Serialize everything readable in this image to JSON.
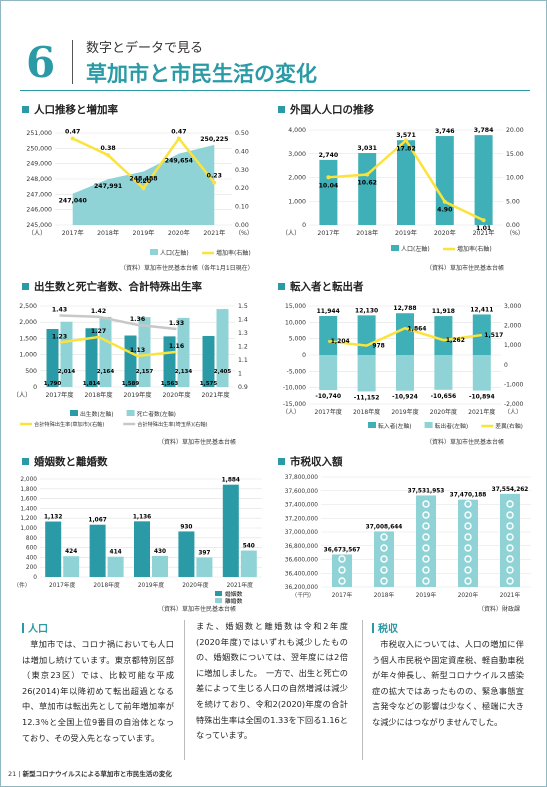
{
  "header": {
    "number": "6",
    "subtitle": "数字とデータで見る",
    "title": "草加市と市民生活の変化"
  },
  "sections": {
    "population": "人口推移と増加率",
    "foreign": "外国人人口の推移",
    "birth": "出生数と死亡者数、合計特殊出生率",
    "migration": "転入者と転出者",
    "marriage": "婚姻数と離婚数",
    "tax": "市税収入額"
  },
  "sources": {
    "population": "（資料）草加市住民基本台帳（各年1月1日現在）",
    "foreign": "（資料）草加市住民基本台帳",
    "birth": "（資料）草加市住民基本台帳",
    "migration": "（資料）草加市住民基本台帳",
    "marriage": "（資料）草加市住民基本台帳",
    "tax": "（資料）財政課"
  },
  "chart_data": [
    {
      "type": "area",
      "id": "population",
      "categories": [
        "2017年",
        "2018年",
        "2019年",
        "2020年",
        "2021年"
      ],
      "series": [
        {
          "name": "人口(左軸)",
          "values": [
            247040,
            247991,
            248488,
            249654,
            250225
          ],
          "labels": [
            "247,040",
            "247,991",
            "248,488",
            "249,654",
            "250,225"
          ]
        },
        {
          "name": "増加率(右軸)",
          "values": [
            0.47,
            0.38,
            0.2,
            0.47,
            0.23
          ],
          "labels": [
            "0.47",
            "0.38",
            "0.20",
            "0.47",
            "0.23"
          ]
        }
      ],
      "ylim": [
        245000,
        251000
      ],
      "yticks": [
        "251,000",
        "250,000",
        "249,000",
        "248,000",
        "247,000",
        "246,000",
        "245,000"
      ],
      "y2lim": [
        0,
        0.5
      ],
      "y2ticks": [
        "0.50",
        "0.40",
        "0.30",
        "0.20",
        "0.10",
        "0.00"
      ],
      "yunit": "（人）",
      "y2unit": "（%）"
    },
    {
      "type": "bar",
      "id": "foreign",
      "categories": [
        "2017年",
        "2018年",
        "2019年",
        "2020年",
        "2021年"
      ],
      "series": [
        {
          "name": "人口(左軸)",
          "values": [
            2740,
            3031,
            3571,
            3746,
            3784
          ],
          "labels": [
            "2,740",
            "3,031",
            "3,571",
            "3,746",
            "3,784"
          ]
        },
        {
          "name": "増加率(右軸)",
          "values": [
            10.04,
            10.62,
            17.82,
            4.9,
            1.01
          ],
          "labels": [
            "10.04",
            "10.62",
            "17.82",
            "4.90",
            "1.01"
          ]
        }
      ],
      "ylim": [
        0,
        4000
      ],
      "yticks": [
        "4,000",
        "3,000",
        "2,000",
        "1,000",
        "0"
      ],
      "y2lim": [
        0,
        20
      ],
      "y2ticks": [
        "20.00",
        "15.00",
        "10.00",
        "5.00",
        "0.00"
      ],
      "yunit": "（人）",
      "y2unit": "（%）"
    },
    {
      "type": "bar",
      "id": "birth",
      "categories": [
        "2017年度",
        "2018年度",
        "2019年度",
        "2020年度",
        "2021年度"
      ],
      "series": [
        {
          "name": "出生数(左軸)",
          "values": [
            1790,
            1814,
            1589,
            1563,
            1575
          ],
          "labels": [
            "1,790",
            "1,814",
            "1,589",
            "1,563",
            "1,575"
          ]
        },
        {
          "name": "死亡者数(左軸)",
          "values": [
            2014,
            2164,
            2157,
            2134,
            2405
          ],
          "labels": [
            "2,014",
            "2,164",
            "2,157",
            "2,134",
            "2,405"
          ]
        },
        {
          "name": "合計特殊出生率(草加市)(右軸)",
          "values": [
            1.23,
            1.27,
            1.13,
            1.16,
            null
          ],
          "labels": [
            "1.23",
            "1.27",
            "1.13",
            "1.16",
            ""
          ]
        },
        {
          "name": "合計特殊出生率(埼玉県)(右軸)",
          "values": [
            1.43,
            1.42,
            1.36,
            1.33,
            null
          ],
          "labels": [
            "1.43",
            "1.42",
            "1.36",
            "1.33",
            ""
          ]
        }
      ],
      "ylim": [
        0,
        2500
      ],
      "yticks": [
        "2,500",
        "2,000",
        "1,500",
        "1,000",
        "500",
        "0"
      ],
      "y2lim": [
        0.9,
        1.5
      ],
      "y2ticks": [
        "1.5",
        "1.4",
        "1.3",
        "1.2",
        "1.1",
        "1",
        "0.9"
      ],
      "yunit": "（人）"
    },
    {
      "type": "bar",
      "id": "migration",
      "categories": [
        "2017年度",
        "2018年度",
        "2019年度",
        "2020年度",
        "2021年度"
      ],
      "series": [
        {
          "name": "転入者(左軸)",
          "values": [
            11944,
            12130,
            12788,
            11918,
            12411
          ],
          "labels": [
            "11,944",
            "12,130",
            "12,788",
            "11,918",
            "12,411"
          ]
        },
        {
          "name": "転出者(左軸)",
          "values": [
            -10740,
            -11152,
            -10924,
            -10656,
            -10894
          ],
          "labels": [
            "-10,740",
            "-11,152",
            "-10,924",
            "-10,656",
            "-10,894"
          ]
        },
        {
          "name": "差異(右軸)",
          "values": [
            1204,
            978,
            1864,
            1262,
            1517
          ],
          "labels": [
            "1,204",
            "978",
            "1,864",
            "1,262",
            "1,517"
          ]
        }
      ],
      "ylim": [
        -15000,
        15000
      ],
      "yticks": [
        "15,000",
        "10,000",
        "5,000",
        "0",
        "-5,000",
        "-10,000",
        "-15,000"
      ],
      "y2lim": [
        -2000,
        3000
      ],
      "y2ticks": [
        "3,000",
        "2,000",
        "1,000",
        "0",
        "-1,000",
        "-2,000"
      ],
      "yunit": "（人）",
      "y2unit": "（人）"
    },
    {
      "type": "bar",
      "id": "marriage",
      "categories": [
        "2017年度",
        "2018年度",
        "2019年度",
        "2020年度",
        "2021年度"
      ],
      "series": [
        {
          "name": "婚姻数",
          "values": [
            1132,
            1067,
            1136,
            930,
            1884
          ],
          "labels": [
            "1,132",
            "1,067",
            "1,136",
            "930",
            "1,884"
          ]
        },
        {
          "name": "離婚数",
          "values": [
            424,
            414,
            430,
            397,
            540
          ],
          "labels": [
            "424",
            "414",
            "430",
            "397",
            "540"
          ]
        }
      ],
      "ylim": [
        0,
        2000
      ],
      "yticks": [
        "2,000",
        "1,800",
        "1,600",
        "1,400",
        "1,200",
        "1,000",
        "800",
        "600",
        "400",
        "200",
        "0"
      ],
      "yunit": "（件）"
    },
    {
      "type": "bar",
      "id": "tax",
      "categories": [
        "2017年",
        "2018年",
        "2019年",
        "2020年",
        "2021年"
      ],
      "series": [
        {
          "name": "市税収入額",
          "values": [
            36673567,
            37008644,
            37531953,
            37470188,
            37554262
          ],
          "labels": [
            "36,673,567",
            "37,008,644",
            "37,531,953",
            "37,470,188",
            "37,554,262"
          ]
        }
      ],
      "ylim": [
        36200000,
        37800000
      ],
      "yticks": [
        "37,800,000",
        "37,600,000",
        "37,400,000",
        "37,200,000",
        "37,000,000",
        "36,800,000",
        "36,600,000",
        "36,400,000",
        "36,200,000"
      ],
      "yunit": "（千円）"
    }
  ],
  "columns": {
    "c1_head": "人口",
    "c1_text": "草加市では、コロナ禍においても人口は増加し続けています。東京都特別区部（東京23区）では、比較可能な平成26(2014)年以降初めて転出超過となる中、草加市は転出先として前年増加率が12.3％と全国上位9番目の自治体となっており、その受入先となっています。",
    "c2_text": "また、婚姻数と離婚数は令和2年度(2020年度)ではいずれも減少したものの、婚姻数については、翌年度には2倍に増加しました。　一方で、出生と死亡の差によって生じる人口の自然増減は減少を続けており、令和2(2020)年度の合計特殊出生率は全国の1.33を下回る1.16となっています。",
    "c3_head": "税収",
    "c3_text": "市税収入については、人口の増加に伴う個人市民税や固定資産税、軽自動車税が年々伸長し、新型コロナウイルス感染症の拡大ではあったものの、緊急事態宣言発令などの影響は少なく、極端に大きな減少にはつながりませんでした。"
  },
  "footer": {
    "page": "21",
    "text": "新型コロナウイルスによる草加市と市民生活の変化"
  },
  "colors": {
    "teal": "#2a9aa6",
    "bar": "#3fb0b8",
    "barLight": "#8fd3d6",
    "yellow": "#fce33b",
    "gray": "#c8c8c8"
  }
}
